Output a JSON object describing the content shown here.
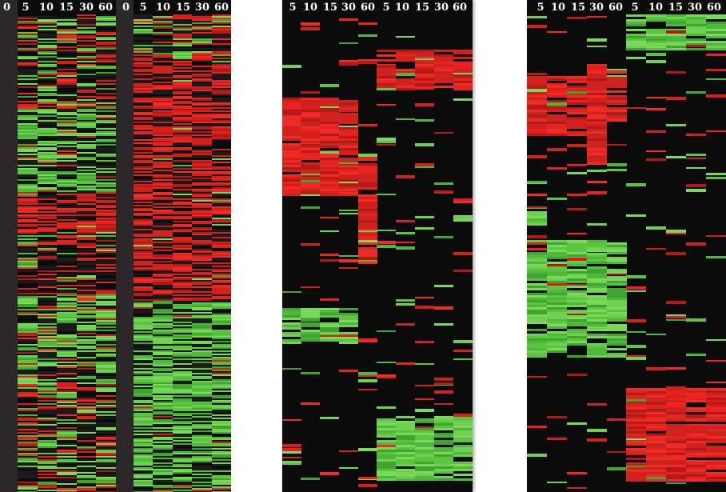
{
  "colors": {
    "background": "#ffffff",
    "heatmap_black": "#0b0b0b",
    "red": "#e8221e",
    "green": "#5cc540",
    "separator": "#2a2a2a"
  },
  "figure": {
    "panel_a": {
      "labels": [
        "0",
        "5",
        "10",
        "15",
        "30",
        "60"
      ]
    },
    "panel_b": {
      "labels": [
        "0",
        "5",
        "10",
        "15",
        "30",
        "60"
      ]
    },
    "panel_c": {
      "labels": [
        "5",
        "10",
        "15",
        "30",
        "60",
        "5",
        "10",
        "15",
        "30",
        "60"
      ]
    },
    "panel_d": {
      "labels": [
        "5",
        "10",
        "15",
        "30",
        "60",
        "5",
        "10",
        "15",
        "30",
        "60"
      ]
    }
  }
}
